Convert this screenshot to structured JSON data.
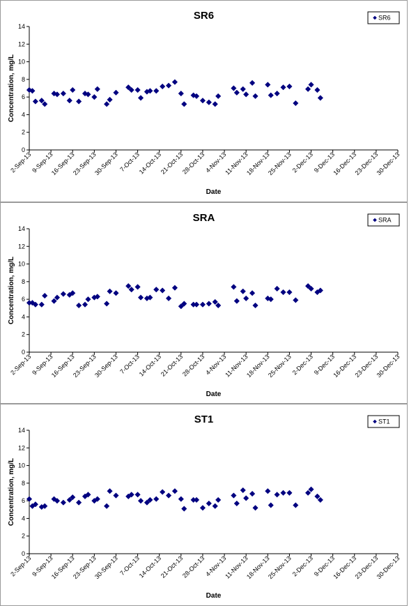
{
  "chart_data": [
    {
      "type": "scatter",
      "title": "SR6",
      "xlabel": "Date",
      "ylabel": "Concentration, mg/L",
      "ylim": [
        0,
        14
      ],
      "yticks": [
        0,
        2,
        4,
        6,
        8,
        10,
        12,
        14
      ],
      "xlim": [
        "2-Sep-13",
        "30-Dec-13"
      ],
      "xticks": [
        "2-Sep-13",
        "9-Sep-13",
        "16-Sep-13",
        "23-Sep-13",
        "30-Sep-13",
        "7-Oct-13",
        "14-Oct-13",
        "21-Oct-13",
        "28-Oct-13",
        "4-Nov-13",
        "11-Nov-13",
        "18-Nov-13",
        "25-Nov-13",
        "2-Dec-13",
        "9-Dec-13",
        "16-Dec-13",
        "23-Dec-13",
        "30-Dec-13"
      ],
      "grid": false,
      "legend": "top-right",
      "color": "#000080",
      "series": [
        {
          "name": "SR6",
          "points": [
            [
              "2-Sep-13",
              6.8
            ],
            [
              "3-Sep-13",
              6.7
            ],
            [
              "4-Sep-13",
              5.5
            ],
            [
              "6-Sep-13",
              5.6
            ],
            [
              "7-Sep-13",
              5.2
            ],
            [
              "10-Sep-13",
              6.4
            ],
            [
              "11-Sep-13",
              6.3
            ],
            [
              "13-Sep-13",
              6.4
            ],
            [
              "15-Sep-13",
              5.6
            ],
            [
              "16-Sep-13",
              6.8
            ],
            [
              "18-Sep-13",
              5.5
            ],
            [
              "20-Sep-13",
              6.4
            ],
            [
              "21-Sep-13",
              6.3
            ],
            [
              "23-Sep-13",
              6.0
            ],
            [
              "24-Sep-13",
              6.9
            ],
            [
              "27-Sep-13",
              5.2
            ],
            [
              "28-Sep-13",
              5.7
            ],
            [
              "30-Sep-13",
              6.5
            ],
            [
              "4-Oct-13",
              7.1
            ],
            [
              "5-Oct-13",
              6.8
            ],
            [
              "7-Oct-13",
              6.8
            ],
            [
              "8-Oct-13",
              5.9
            ],
            [
              "10-Oct-13",
              6.6
            ],
            [
              "11-Oct-13",
              6.7
            ],
            [
              "13-Oct-13",
              6.7
            ],
            [
              "15-Oct-13",
              7.2
            ],
            [
              "17-Oct-13",
              7.3
            ],
            [
              "19-Oct-13",
              7.7
            ],
            [
              "21-Oct-13",
              6.4
            ],
            [
              "22-Oct-13",
              5.2
            ],
            [
              "25-Oct-13",
              6.2
            ],
            [
              "26-Oct-13",
              6.1
            ],
            [
              "28-Oct-13",
              5.6
            ],
            [
              "30-Oct-13",
              5.4
            ],
            [
              "1-Nov-13",
              5.2
            ],
            [
              "2-Nov-13",
              6.1
            ],
            [
              "7-Nov-13",
              7.0
            ],
            [
              "8-Nov-13",
              6.5
            ],
            [
              "10-Nov-13",
              6.9
            ],
            [
              "11-Nov-13",
              6.3
            ],
            [
              "13-Nov-13",
              7.6
            ],
            [
              "14-Nov-13",
              6.1
            ],
            [
              "18-Nov-13",
              7.4
            ],
            [
              "19-Nov-13",
              6.2
            ],
            [
              "21-Nov-13",
              6.4
            ],
            [
              "23-Nov-13",
              7.1
            ],
            [
              "25-Nov-13",
              7.2
            ],
            [
              "27-Nov-13",
              5.3
            ],
            [
              "1-Dec-13",
              6.9
            ],
            [
              "2-Dec-13",
              7.4
            ],
            [
              "4-Dec-13",
              6.8
            ],
            [
              "5-Dec-13",
              5.9
            ]
          ]
        }
      ]
    },
    {
      "type": "scatter",
      "title": "SRA",
      "xlabel": "Date",
      "ylabel": "Concentration, mg/L",
      "ylim": [
        0,
        14
      ],
      "yticks": [
        0,
        2,
        4,
        6,
        8,
        10,
        12,
        14
      ],
      "xlim": [
        "2-Sep-13",
        "30-Dec-13"
      ],
      "xticks": [
        "2-Sep-13",
        "9-Sep-13",
        "16-Sep-13",
        "23-Sep-13",
        "30-Sep-13",
        "7-Oct-13",
        "14-Oct-13",
        "21-Oct-13",
        "28-Oct-13",
        "4-Nov-13",
        "11-Nov-13",
        "18-Nov-13",
        "25-Nov-13",
        "2-Dec-13",
        "9-Dec-13",
        "16-Dec-13",
        "23-Dec-13",
        "30-Dec-13"
      ],
      "grid": false,
      "legend": "top-right",
      "color": "#000080",
      "series": [
        {
          "name": "SRA",
          "points": [
            [
              "2-Sep-13",
              5.6
            ],
            [
              "3-Sep-13",
              5.6
            ],
            [
              "4-Sep-13",
              5.4
            ],
            [
              "6-Sep-13",
              5.4
            ],
            [
              "7-Sep-13",
              6.4
            ],
            [
              "10-Sep-13",
              5.8
            ],
            [
              "11-Sep-13",
              6.2
            ],
            [
              "13-Sep-13",
              6.6
            ],
            [
              "15-Sep-13",
              6.5
            ],
            [
              "16-Sep-13",
              6.7
            ],
            [
              "18-Sep-13",
              5.3
            ],
            [
              "20-Sep-13",
              5.4
            ],
            [
              "21-Sep-13",
              6.0
            ],
            [
              "23-Sep-13",
              6.2
            ],
            [
              "24-Sep-13",
              6.3
            ],
            [
              "27-Sep-13",
              5.5
            ],
            [
              "28-Sep-13",
              6.9
            ],
            [
              "30-Sep-13",
              6.7
            ],
            [
              "4-Oct-13",
              7.5
            ],
            [
              "5-Oct-13",
              7.1
            ],
            [
              "7-Oct-13",
              7.4
            ],
            [
              "8-Oct-13",
              6.2
            ],
            [
              "10-Oct-13",
              6.1
            ],
            [
              "11-Oct-13",
              6.2
            ],
            [
              "13-Oct-13",
              7.1
            ],
            [
              "15-Oct-13",
              7.0
            ],
            [
              "17-Oct-13",
              6.1
            ],
            [
              "19-Oct-13",
              7.3
            ],
            [
              "21-Oct-13",
              5.2
            ],
            [
              "22-Oct-13",
              5.5
            ],
            [
              "25-Oct-13",
              5.4
            ],
            [
              "26-Oct-13",
              5.4
            ],
            [
              "28-Oct-13",
              5.4
            ],
            [
              "30-Oct-13",
              5.5
            ],
            [
              "1-Nov-13",
              5.7
            ],
            [
              "2-Nov-13",
              5.3
            ],
            [
              "7-Nov-13",
              7.4
            ],
            [
              "8-Nov-13",
              5.8
            ],
            [
              "10-Nov-13",
              6.9
            ],
            [
              "11-Nov-13",
              6.1
            ],
            [
              "13-Nov-13",
              6.7
            ],
            [
              "14-Nov-13",
              5.3
            ],
            [
              "18-Nov-13",
              6.1
            ],
            [
              "19-Nov-13",
              6.0
            ],
            [
              "21-Nov-13",
              7.2
            ],
            [
              "23-Nov-13",
              6.8
            ],
            [
              "25-Nov-13",
              6.8
            ],
            [
              "27-Nov-13",
              5.9
            ],
            [
              "1-Dec-13",
              7.5
            ],
            [
              "2-Dec-13",
              7.2
            ],
            [
              "4-Dec-13",
              6.8
            ],
            [
              "5-Dec-13",
              7.0
            ]
          ]
        }
      ]
    },
    {
      "type": "scatter",
      "title": "ST1",
      "xlabel": "Date",
      "ylabel": "Concentration, mg/L",
      "ylim": [
        0,
        14
      ],
      "yticks": [
        0,
        2,
        4,
        6,
        8,
        10,
        12,
        14
      ],
      "xlim": [
        "2-Sep-13",
        "30-Dec-13"
      ],
      "xticks": [
        "2-Sep-13",
        "9-Sep-13",
        "16-Sep-13",
        "23-Sep-13",
        "30-Sep-13",
        "7-Oct-13",
        "14-Oct-13",
        "21-Oct-13",
        "28-Oct-13",
        "4-Nov-13",
        "11-Nov-13",
        "18-Nov-13",
        "25-Nov-13",
        "2-Dec-13",
        "9-Dec-13",
        "16-Dec-13",
        "23-Dec-13",
        "30-Dec-13"
      ],
      "grid": false,
      "legend": "top-right",
      "color": "#000080",
      "series": [
        {
          "name": "ST1",
          "points": [
            [
              "2-Sep-13",
              6.2
            ],
            [
              "3-Sep-13",
              5.4
            ],
            [
              "4-Sep-13",
              5.6
            ],
            [
              "6-Sep-13",
              5.3
            ],
            [
              "7-Sep-13",
              5.4
            ],
            [
              "10-Sep-13",
              6.2
            ],
            [
              "11-Sep-13",
              6.0
            ],
            [
              "13-Sep-13",
              5.8
            ],
            [
              "15-Sep-13",
              6.1
            ],
            [
              "16-Sep-13",
              6.4
            ],
            [
              "18-Sep-13",
              5.8
            ],
            [
              "20-Sep-13",
              6.5
            ],
            [
              "21-Sep-13",
              6.7
            ],
            [
              "23-Sep-13",
              6.0
            ],
            [
              "24-Sep-13",
              6.2
            ],
            [
              "27-Sep-13",
              5.4
            ],
            [
              "28-Sep-13",
              7.1
            ],
            [
              "30-Sep-13",
              6.6
            ],
            [
              "4-Oct-13",
              6.5
            ],
            [
              "5-Oct-13",
              6.7
            ],
            [
              "7-Oct-13",
              6.7
            ],
            [
              "8-Oct-13",
              6.0
            ],
            [
              "10-Oct-13",
              5.8
            ],
            [
              "11-Oct-13",
              6.1
            ],
            [
              "13-Oct-13",
              6.2
            ],
            [
              "15-Oct-13",
              7.0
            ],
            [
              "17-Oct-13",
              6.6
            ],
            [
              "19-Oct-13",
              7.1
            ],
            [
              "21-Oct-13",
              6.2
            ],
            [
              "22-Oct-13",
              5.1
            ],
            [
              "25-Oct-13",
              6.1
            ],
            [
              "26-Oct-13",
              6.1
            ],
            [
              "28-Oct-13",
              5.2
            ],
            [
              "30-Oct-13",
              5.7
            ],
            [
              "1-Nov-13",
              5.4
            ],
            [
              "2-Nov-13",
              6.1
            ],
            [
              "7-Nov-13",
              6.6
            ],
            [
              "8-Nov-13",
              5.7
            ],
            [
              "10-Nov-13",
              7.2
            ],
            [
              "11-Nov-13",
              6.3
            ],
            [
              "13-Nov-13",
              6.8
            ],
            [
              "14-Nov-13",
              5.2
            ],
            [
              "18-Nov-13",
              7.1
            ],
            [
              "19-Nov-13",
              5.5
            ],
            [
              "21-Nov-13",
              6.7
            ],
            [
              "23-Nov-13",
              6.9
            ],
            [
              "25-Nov-13",
              6.9
            ],
            [
              "27-Nov-13",
              5.5
            ],
            [
              "1-Dec-13",
              6.9
            ],
            [
              "2-Dec-13",
              7.3
            ],
            [
              "4-Dec-13",
              6.5
            ],
            [
              "5-Dec-13",
              6.1
            ]
          ]
        }
      ]
    }
  ]
}
